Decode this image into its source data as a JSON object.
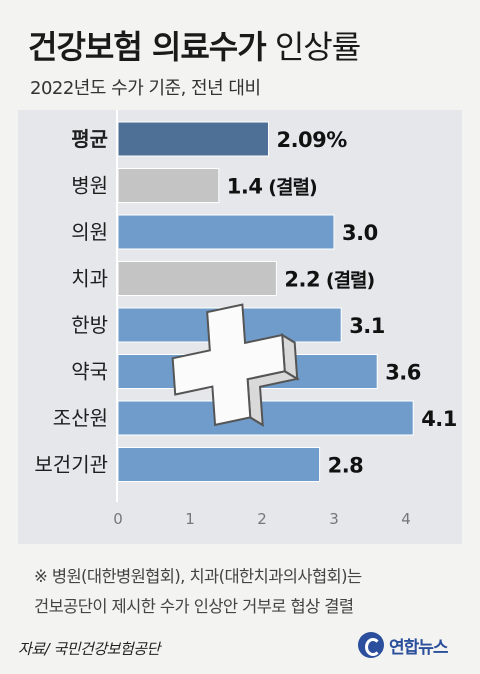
{
  "header": {
    "title_strong": "건강보험 의료수가",
    "title_light": "인상률",
    "subtitle": "2022년도 수가 기준, 전년 대비"
  },
  "chart_data": {
    "type": "bar",
    "orientation": "horizontal",
    "categories": [
      "평균",
      "병원",
      "의원",
      "치과",
      "한방",
      "약국",
      "조산원",
      "보건기관"
    ],
    "values": [
      2.09,
      1.4,
      3.0,
      2.2,
      3.1,
      3.6,
      4.1,
      2.8
    ],
    "value_labels": [
      "2.09%",
      "1.4",
      "3.0",
      "2.2",
      "3.1",
      "3.6",
      "4.1",
      "2.8"
    ],
    "annotations": [
      "",
      "(결렬)",
      "",
      "(결렬)",
      "",
      "",
      "",
      ""
    ],
    "bar_kind": [
      "average",
      "failed",
      "normal",
      "failed",
      "normal",
      "normal",
      "normal",
      "normal"
    ],
    "xlim": [
      0,
      4.5
    ],
    "xticks": [
      0,
      1,
      2,
      3,
      4
    ],
    "colors": {
      "average": "#4e6f96",
      "normal": "#6f9cca",
      "failed": "#c4c4c4"
    }
  },
  "note": {
    "line1": "※ 병원(대한병원협회), 치과(대한치과의사협회)는",
    "line2": "건보공단이 제시한 수가 인상안 거부로 협상 결렬"
  },
  "source": "자료/ 국민건강보험공단",
  "logo": {
    "text": "연합뉴스",
    "brand_color": "#2b4f9c"
  }
}
